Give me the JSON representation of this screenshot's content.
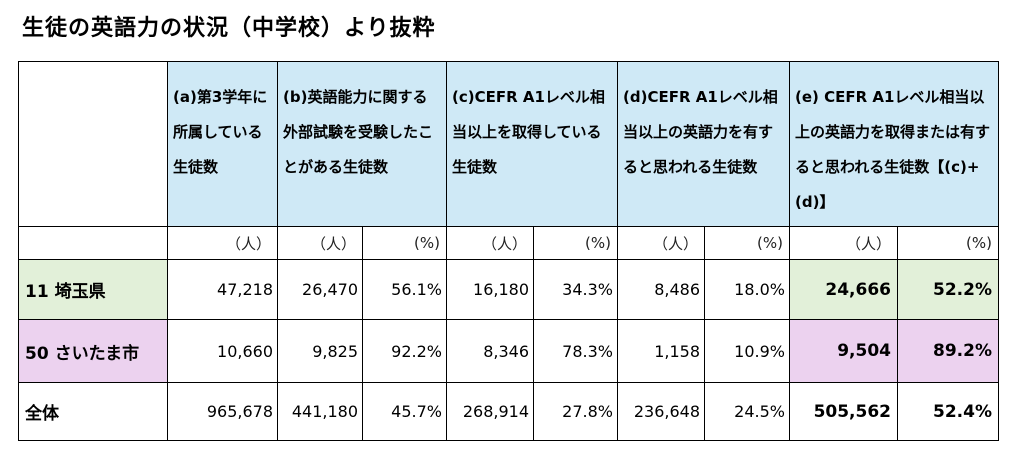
{
  "title": "生徒の英語力の状況（中学校）より抜粋",
  "headers": {
    "a": "(a)第3学年に所属している生徒数",
    "b": "(b)英語能力に関する外部試験を受験したことがある生徒数",
    "c": "(c)CEFR A1レベル相当以上を取得している生徒数",
    "d": "(d)CEFR A1レベル相当以上の英語力を有すると思われる生徒数",
    "e": "(e) CEFR A1レベル相当以上の英語力を取得または有すると思われる生徒数【(c)+(d)】"
  },
  "units": {
    "people": "（人）",
    "percent": "(%)"
  },
  "rows": [
    {
      "label": "11 埼玉県",
      "a": "47,218",
      "b_n": "26,470",
      "b_p": "56.1%",
      "c_n": "16,180",
      "c_p": "34.3%",
      "d_n": "8,486",
      "d_p": "18.0%",
      "e_n": "24,666",
      "e_p": "52.2%"
    },
    {
      "label": "50 さいたま市",
      "a": "10,660",
      "b_n": "9,825",
      "b_p": "92.2%",
      "c_n": "8,346",
      "c_p": "78.3%",
      "d_n": "1,158",
      "d_p": "10.9%",
      "e_n": "9,504",
      "e_p": "89.2%"
    },
    {
      "label": "全体",
      "a": "965,678",
      "b_n": "441,180",
      "b_p": "45.7%",
      "c_n": "268,914",
      "c_p": "27.8%",
      "d_n": "236,648",
      "d_p": "24.5%",
      "e_n": "505,562",
      "e_p": "52.4%"
    }
  ],
  "colors": {
    "header_bg": "#cfe9f6",
    "prefecture_bg": "#e2f0d9",
    "city_bg": "#ecd2ef"
  }
}
